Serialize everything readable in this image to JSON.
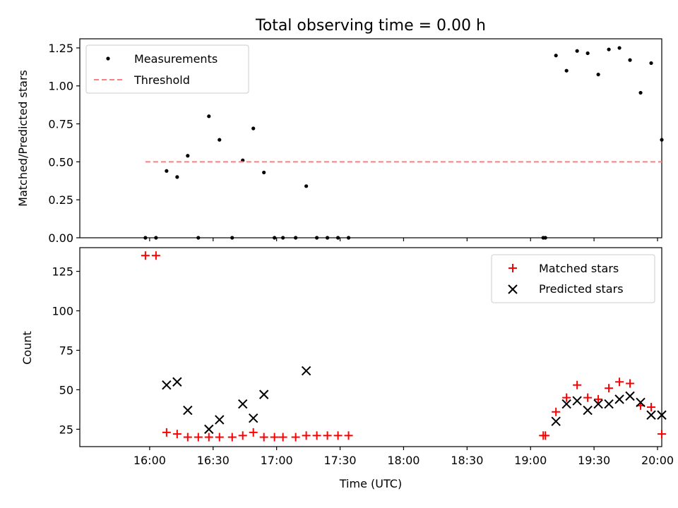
{
  "title": "Total observing time = 0.00 h",
  "chart_data": [
    {
      "type": "scatter",
      "ylabel": "Matched/Predicted stars",
      "xlabel": "",
      "xlim_minutes_from_midnight_utc": [
        927,
        1202
      ],
      "ylim": [
        0,
        1.31
      ],
      "yticks": [
        0.0,
        0.25,
        0.5,
        0.75,
        1.0,
        1.25
      ],
      "ytick_labels": [
        "0.00",
        "0.25",
        "0.50",
        "0.75",
        "1.00",
        "1.25"
      ],
      "legend_position": "upper-left",
      "series": [
        {
          "name": "Measurements",
          "marker": "dot",
          "color": "#000000",
          "points": [
            {
              "t": "15:58",
              "y": 0.0
            },
            {
              "t": "16:03",
              "y": 0.0
            },
            {
              "t": "16:08",
              "y": 0.44
            },
            {
              "t": "16:13",
              "y": 0.4
            },
            {
              "t": "16:18",
              "y": 0.54
            },
            {
              "t": "16:23",
              "y": 0.0
            },
            {
              "t": "16:28",
              "y": 0.8
            },
            {
              "t": "16:33",
              "y": 0.645
            },
            {
              "t": "16:39",
              "y": 0.0
            },
            {
              "t": "16:44",
              "y": 0.51
            },
            {
              "t": "16:49",
              "y": 0.72
            },
            {
              "t": "16:54",
              "y": 0.43
            },
            {
              "t": "16:59",
              "y": 0.0
            },
            {
              "t": "17:03",
              "y": 0.0
            },
            {
              "t": "17:09",
              "y": 0.0
            },
            {
              "t": "17:14",
              "y": 0.34
            },
            {
              "t": "17:19",
              "y": 0.0
            },
            {
              "t": "17:24",
              "y": 0.0
            },
            {
              "t": "17:29",
              "y": 0.0
            },
            {
              "t": "17:34",
              "y": 0.0
            },
            {
              "t": "19:06",
              "y": 0.0
            },
            {
              "t": "19:07",
              "y": 0.0
            },
            {
              "t": "19:12",
              "y": 1.2
            },
            {
              "t": "19:17",
              "y": 1.1
            },
            {
              "t": "19:22",
              "y": 1.23
            },
            {
              "t": "19:27",
              "y": 1.215
            },
            {
              "t": "19:32",
              "y": 1.075
            },
            {
              "t": "19:37",
              "y": 1.24
            },
            {
              "t": "19:42",
              "y": 1.25
            },
            {
              "t": "19:47",
              "y": 1.17
            },
            {
              "t": "19:52",
              "y": 0.955
            },
            {
              "t": "19:57",
              "y": 1.15
            },
            {
              "t": "20:02",
              "y": 0.645
            }
          ]
        },
        {
          "name": "Threshold",
          "type": "line",
          "style": "dashed",
          "color": "#ff7f7f",
          "points": [
            {
              "t": "15:58",
              "y": 0.5
            },
            {
              "t": "20:02",
              "y": 0.5
            }
          ]
        }
      ]
    },
    {
      "type": "scatter",
      "ylabel": "Count",
      "xlabel": "Time (UTC)",
      "xlim_minutes_from_midnight_utc": [
        927,
        1202
      ],
      "ylim": [
        14,
        140
      ],
      "yticks": [
        25,
        50,
        75,
        100,
        125
      ],
      "ytick_labels": [
        "25",
        "50",
        "75",
        "100",
        "125"
      ],
      "xticks": [
        "16:00",
        "16:30",
        "17:00",
        "17:30",
        "18:00",
        "18:30",
        "19:00",
        "19:30",
        "20:00"
      ],
      "legend_position": "upper-right",
      "series": [
        {
          "name": "Matched stars",
          "marker": "plus",
          "color": "#ff0000",
          "points": [
            {
              "t": "15:58",
              "y": 135
            },
            {
              "t": "16:03",
              "y": 135
            },
            {
              "t": "16:08",
              "y": 23
            },
            {
              "t": "16:13",
              "y": 22
            },
            {
              "t": "16:18",
              "y": 20
            },
            {
              "t": "16:23",
              "y": 20
            },
            {
              "t": "16:28",
              "y": 20
            },
            {
              "t": "16:33",
              "y": 20
            },
            {
              "t": "16:39",
              "y": 20
            },
            {
              "t": "16:44",
              "y": 21
            },
            {
              "t": "16:49",
              "y": 23
            },
            {
              "t": "16:54",
              "y": 20
            },
            {
              "t": "16:59",
              "y": 20
            },
            {
              "t": "17:03",
              "y": 20
            },
            {
              "t": "17:09",
              "y": 20
            },
            {
              "t": "17:14",
              "y": 21
            },
            {
              "t": "17:19",
              "y": 21
            },
            {
              "t": "17:24",
              "y": 21
            },
            {
              "t": "17:29",
              "y": 21
            },
            {
              "t": "17:34",
              "y": 21
            },
            {
              "t": "19:06",
              "y": 21
            },
            {
              "t": "19:07",
              "y": 21
            },
            {
              "t": "19:12",
              "y": 36
            },
            {
              "t": "19:17",
              "y": 45
            },
            {
              "t": "19:22",
              "y": 53
            },
            {
              "t": "19:27",
              "y": 45
            },
            {
              "t": "19:32",
              "y": 44
            },
            {
              "t": "19:37",
              "y": 51
            },
            {
              "t": "19:42",
              "y": 55
            },
            {
              "t": "19:47",
              "y": 54
            },
            {
              "t": "19:52",
              "y": 40
            },
            {
              "t": "19:57",
              "y": 39
            },
            {
              "t": "20:02",
              "y": 22
            }
          ]
        },
        {
          "name": "Predicted stars",
          "marker": "x",
          "color": "#000000",
          "points": [
            {
              "t": "16:08",
              "y": 53
            },
            {
              "t": "16:13",
              "y": 55
            },
            {
              "t": "16:18",
              "y": 37
            },
            {
              "t": "16:28",
              "y": 25
            },
            {
              "t": "16:33",
              "y": 31
            },
            {
              "t": "16:44",
              "y": 41
            },
            {
              "t": "16:49",
              "y": 32
            },
            {
              "t": "16:54",
              "y": 47
            },
            {
              "t": "17:14",
              "y": 62
            },
            {
              "t": "19:12",
              "y": 30
            },
            {
              "t": "19:17",
              "y": 41
            },
            {
              "t": "19:22",
              "y": 43
            },
            {
              "t": "19:27",
              "y": 37
            },
            {
              "t": "19:32",
              "y": 41
            },
            {
              "t": "19:37",
              "y": 41
            },
            {
              "t": "19:42",
              "y": 44
            },
            {
              "t": "19:47",
              "y": 46
            },
            {
              "t": "19:52",
              "y": 42
            },
            {
              "t": "19:57",
              "y": 34
            },
            {
              "t": "20:02",
              "y": 34
            }
          ]
        }
      ]
    }
  ]
}
